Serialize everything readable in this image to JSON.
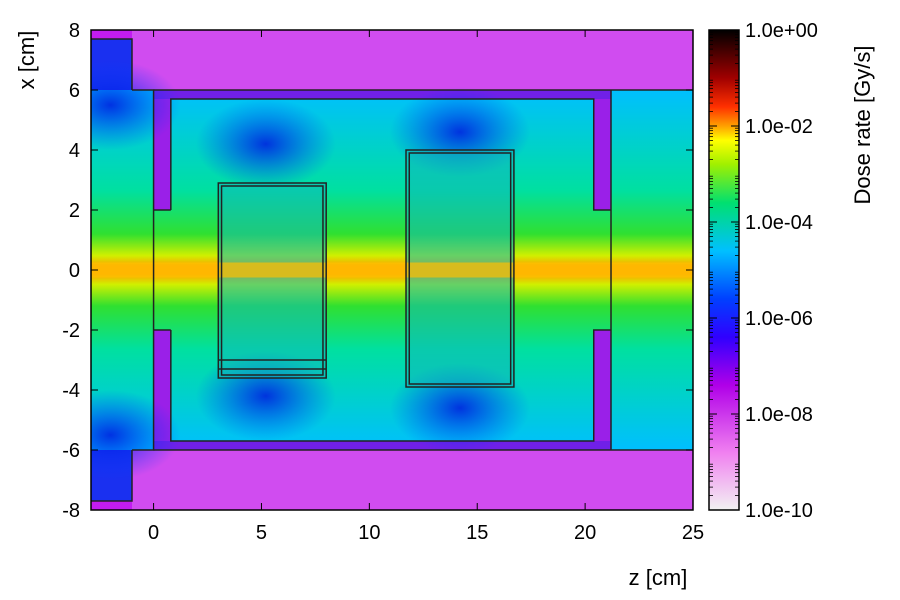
{
  "chart_data": {
    "type": "heatmap",
    "title": "",
    "xlabel": "z [cm]",
    "ylabel": "x [cm]",
    "xlim": [
      -2.9,
      25
    ],
    "ylim": [
      -8,
      8
    ],
    "x_ticks": [
      "0",
      "5",
      "10",
      "15",
      "20",
      "25"
    ],
    "x_tick_values": [
      0,
      5,
      10,
      15,
      20,
      25
    ],
    "y_ticks": [
      "8",
      "6",
      "4",
      "2",
      "0",
      "-2",
      "-4",
      "-6",
      "-8"
    ],
    "y_tick_values": [
      8,
      6,
      4,
      2,
      0,
      -2,
      -4,
      -6,
      -8
    ],
    "colorbar": {
      "label": "Dose rate [Gy/s]",
      "scale": "log",
      "range": [
        1e-10,
        1
      ],
      "ticks": [
        "1.0e+00",
        "1.0e-02",
        "1.0e-04",
        "1.0e-06",
        "1.0e-08",
        "1.0e-10"
      ],
      "tick_values": [
        1,
        0.01,
        0.0001,
        1e-06,
        1e-08,
        1e-10
      ],
      "colors": [
        "#dcdcdc",
        "#ff70ff",
        "#9a00e6",
        "#0000ff",
        "#00c8ff",
        "#00e060",
        "#ffff00",
        "#ff8000",
        "#ff0000",
        "#800000",
        "#000000"
      ]
    },
    "background_dose": {
      "beam_axis_x": 0,
      "beam_peak": "1.0e-03",
      "outer_shield_region": "1.0e-08",
      "cavity_region": "1.0e-06"
    },
    "structures": [
      {
        "name": "left-collimator-top",
        "z": [
          -2.9,
          -1
        ],
        "x": [
          6,
          7.7
        ]
      },
      {
        "name": "left-collimator-bottom",
        "z": [
          -2.9,
          -1
        ],
        "x": [
          -7.7,
          -6
        ]
      },
      {
        "name": "chamber-wall",
        "z": [
          0,
          21.2
        ],
        "x": [
          -6,
          6
        ]
      },
      {
        "name": "inner-cavity",
        "z": [
          0.8,
          20.4
        ],
        "x": [
          -5.7,
          5.7
        ]
      },
      {
        "name": "sample-block-1",
        "z": [
          3,
          8
        ],
        "x": [
          -3.6,
          2.9
        ]
      },
      {
        "name": "sample-block-2",
        "z": [
          11.7,
          16.7
        ],
        "x": [
          -3.9,
          4
        ]
      }
    ]
  }
}
